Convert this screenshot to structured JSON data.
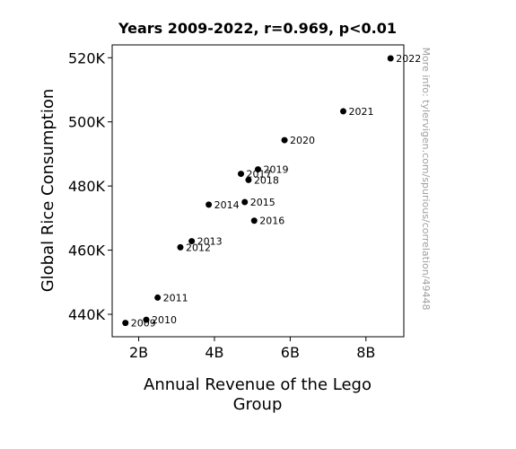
{
  "chart_data": {
    "type": "scatter",
    "title": "Years 2009-2022, r=0.969, p<0.01",
    "xlabel_lines": [
      "Annual Revenue of the Lego",
      "Group"
    ],
    "ylabel": "Global Rice Consumption",
    "xlim": [
      1.3,
      9.0
    ],
    "ylim": [
      433.0,
      524.0
    ],
    "x_ticks": [
      {
        "value": 2,
        "label": "2B"
      },
      {
        "value": 4,
        "label": "4B"
      },
      {
        "value": 6,
        "label": "6B"
      },
      {
        "value": 8,
        "label": "8B"
      }
    ],
    "y_ticks": [
      {
        "value": 440,
        "label": "440K"
      },
      {
        "value": 460,
        "label": "460K"
      },
      {
        "value": 480,
        "label": "480K"
      },
      {
        "value": 500,
        "label": "500K"
      },
      {
        "value": 520,
        "label": "520K"
      }
    ],
    "points": [
      {
        "label": "2009",
        "x": 1.65,
        "y": 437.3
      },
      {
        "label": "2010",
        "x": 2.2,
        "y": 438.3
      },
      {
        "label": "2011",
        "x": 2.5,
        "y": 445.2
      },
      {
        "label": "2012",
        "x": 3.1,
        "y": 460.9
      },
      {
        "label": "2013",
        "x": 3.4,
        "y": 462.8
      },
      {
        "label": "2014",
        "x": 3.85,
        "y": 474.2
      },
      {
        "label": "2015",
        "x": 4.8,
        "y": 475.0
      },
      {
        "label": "2016",
        "x": 5.05,
        "y": 469.2
      },
      {
        "label": "2017",
        "x": 4.7,
        "y": 483.8
      },
      {
        "label": "2018",
        "x": 4.9,
        "y": 481.9
      },
      {
        "label": "2019",
        "x": 5.15,
        "y": 485.2
      },
      {
        "label": "2020",
        "x": 5.85,
        "y": 494.3
      },
      {
        "label": "2021",
        "x": 7.4,
        "y": 503.3
      },
      {
        "label": "2022",
        "x": 8.65,
        "y": 519.8
      }
    ],
    "grid": false,
    "marker_color": "#000000",
    "watermark": "More info: tylervigen.com/spurious/correlation/49448"
  }
}
